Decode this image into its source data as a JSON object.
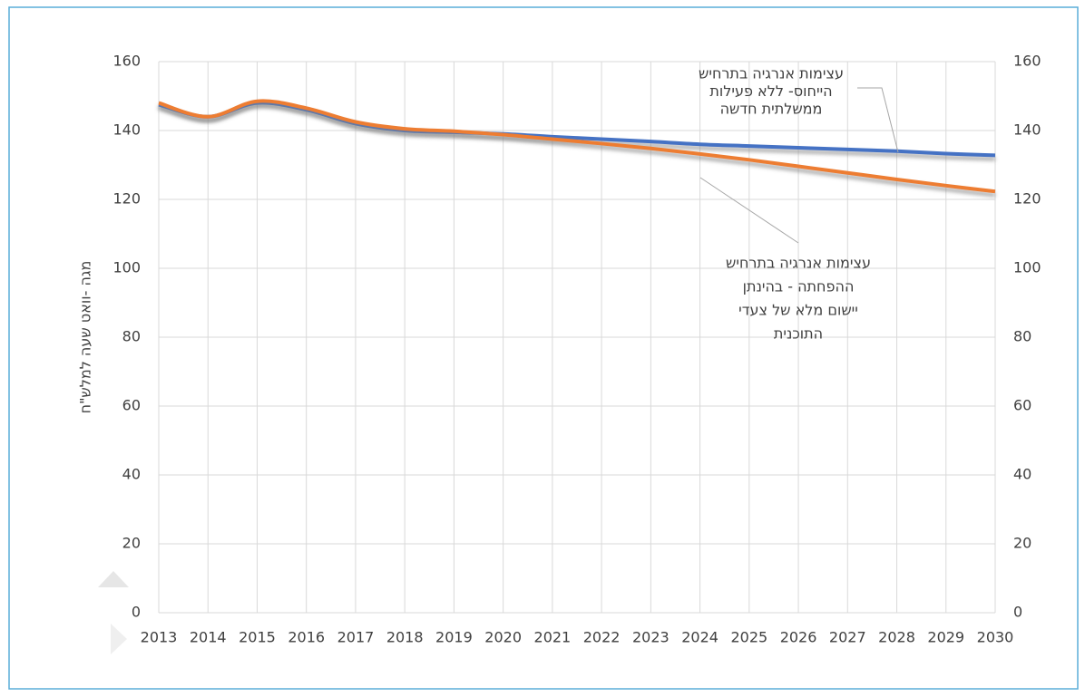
{
  "chart_data": {
    "type": "line",
    "y_label": "מגה -וואט שעה למלש\"ח",
    "categories": [
      "2013",
      "2014",
      "2015",
      "2016",
      "2017",
      "2018",
      "2019",
      "2020",
      "2021",
      "2022",
      "2023",
      "2024",
      "2025",
      "2026",
      "2027",
      "2028",
      "2029",
      "2030"
    ],
    "series": [
      {
        "color": "#4472c4",
        "values": [
          147.5,
          144,
          148,
          146,
          142,
          140,
          139.5,
          139,
          138.2,
          137.5,
          136.8,
          136,
          135.5,
          135,
          134.5,
          134,
          133.3,
          132.8
        ]
      },
      {
        "color": "#ed7d31",
        "values": [
          148,
          144,
          148.5,
          146.5,
          142.5,
          140.5,
          139.8,
          138.8,
          137.5,
          136.2,
          134.8,
          133.2,
          131.5,
          129.6,
          127.7,
          125.8,
          124,
          122.3
        ]
      }
    ],
    "ylim": [
      0,
      160
    ],
    "yticks": [
      0,
      20,
      40,
      60,
      80,
      100,
      120,
      140,
      160
    ],
    "y2lim": [
      0,
      160
    ],
    "y2ticks": [
      0,
      20,
      40,
      60,
      80,
      100,
      120,
      140,
      160
    ],
    "grid": true,
    "annotations": [
      [
        "עצימות אנרגיה בתרחיש",
        "הייחוס- ללא פעילות",
        "ממשלתית חדשה"
      ],
      [
        "עצימות אנרגיה בתרחיש",
        "ההפחתה - בהינתן",
        "יישום מלא של צעדי",
        "התוכנית"
      ]
    ]
  }
}
